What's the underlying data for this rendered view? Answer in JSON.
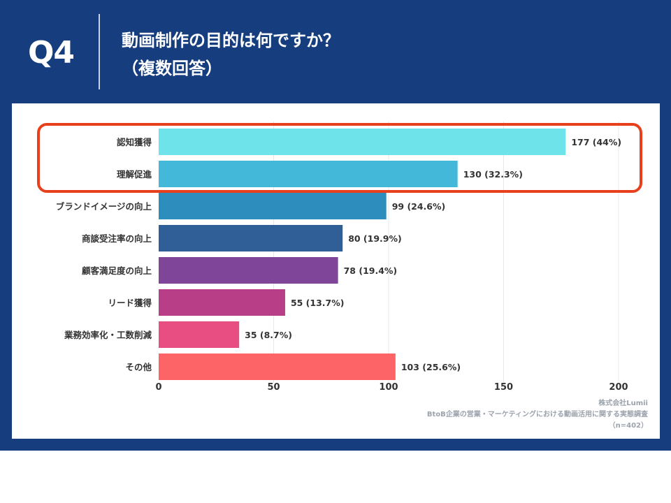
{
  "header": {
    "question_label": "Q4",
    "title_line1": "動画制作の目的は何ですか？",
    "title_line2": "（複数回答）"
  },
  "colors": {
    "banner": "#163d7e",
    "highlight": "#e8401c"
  },
  "chart_data": {
    "type": "bar",
    "orientation": "horizontal",
    "categories": [
      "認知獲得",
      "理解促進",
      "ブランドイメージの向上",
      "商談受注率の向上",
      "顧客満足度の向上",
      "リード獲得",
      "業務効率化・工数削減",
      "その他"
    ],
    "values": [
      177,
      130,
      99,
      80,
      78,
      55,
      35,
      103
    ],
    "value_labels": [
      "177 (44%)",
      "130 (32.3%)",
      "99 (24.6%)",
      "80 (19.9%)",
      "78 (19.4%)",
      "55 (13.7%)",
      "35 (8.7%)",
      "103 (25.6%)"
    ],
    "bar_colors": [
      "#6ee4ea",
      "#44b8d8",
      "#2d8dbd",
      "#2f5f96",
      "#7f4599",
      "#b83f87",
      "#e94e82",
      "#fd6468"
    ],
    "x_ticks": [
      0,
      50,
      100,
      150,
      200
    ],
    "xlim": [
      0,
      200
    ],
    "grid": true,
    "highlighted_categories": [
      "認知獲得",
      "理解促進"
    ]
  },
  "source": {
    "company": "株式会社Lumii",
    "survey": "BtoB企業の営業・マーケティングにおける動画活用に関する実態調査",
    "sample": "（n=402）"
  }
}
